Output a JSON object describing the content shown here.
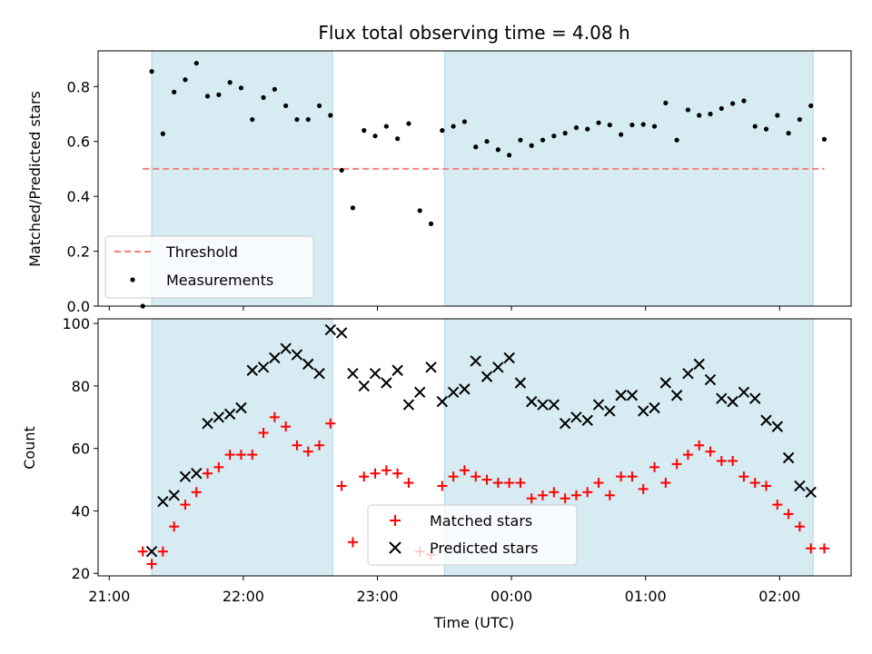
{
  "chart_data": [
    {
      "type": "scatter",
      "title": "Flux total observing time = 4.08 h",
      "xlabel": "",
      "ylabel": "Matched/Predicted stars",
      "ylim": [
        0,
        0.93
      ],
      "yticks": [
        "0.0",
        "0.2",
        "0.4",
        "0.6",
        "0.8"
      ],
      "ytick_values": [
        0,
        0.2,
        0.4,
        0.6,
        0.8
      ],
      "x_range_min": [
        -5,
        332
      ],
      "x_tick_minutes": [
        0,
        60,
        120,
        180,
        240,
        300
      ],
      "shaded_intervals_min": [
        [
          19,
          100
        ],
        [
          150,
          315
        ]
      ],
      "threshold": {
        "name": "Threshold",
        "value": 0.5,
        "x_span_min": [
          15,
          320
        ],
        "color": "#f08080"
      },
      "legend_position": "lower-left",
      "series": [
        {
          "name": "Measurements",
          "color": "#000000",
          "x": [
            15,
            19,
            24,
            29,
            34,
            39,
            44,
            49,
            54,
            59,
            64,
            69,
            74,
            79,
            84,
            89,
            94,
            99,
            104,
            109,
            114,
            119,
            124,
            129,
            134,
            139,
            144,
            149,
            154,
            159,
            164,
            169,
            174,
            179,
            184,
            189,
            194,
            199,
            204,
            209,
            214,
            219,
            224,
            229,
            234,
            239,
            244,
            249,
            254,
            259,
            264,
            269,
            274,
            279,
            284,
            289,
            294,
            299,
            304,
            309,
            314,
            320
          ],
          "y": [
            0.0,
            0.855,
            0.628,
            0.78,
            0.825,
            0.885,
            0.765,
            0.77,
            0.815,
            0.795,
            0.68,
            0.76,
            0.79,
            0.73,
            0.68,
            0.68,
            0.73,
            0.695,
            0.495,
            0.358,
            0.64,
            0.62,
            0.655,
            0.61,
            0.665,
            0.348,
            0.3,
            0.64,
            0.655,
            0.672,
            0.58,
            0.6,
            0.57,
            0.55,
            0.605,
            0.585,
            0.605,
            0.62,
            0.63,
            0.65,
            0.645,
            0.668,
            0.66,
            0.625,
            0.66,
            0.662,
            0.655,
            0.74,
            0.605,
            0.715,
            0.695,
            0.7,
            0.72,
            0.738,
            0.748,
            0.655,
            0.645,
            0.695,
            0.63,
            0.68,
            0.73,
            0.608
          ]
        }
      ]
    },
    {
      "type": "scatter",
      "title": "",
      "xlabel": "Time (UTC)",
      "ylabel": "Count",
      "ylim": [
        19.2,
        101.5
      ],
      "yticks": [
        "20",
        "40",
        "60",
        "80",
        "100"
      ],
      "ytick_values": [
        20,
        40,
        60,
        80,
        100
      ],
      "x_range_min": [
        -5,
        332
      ],
      "xticks": [
        "21:00",
        "22:00",
        "23:00",
        "00:00",
        "01:00",
        "02:00"
      ],
      "x_tick_minutes": [
        0,
        60,
        120,
        180,
        240,
        300
      ],
      "shaded_intervals_min": [
        [
          19,
          100
        ],
        [
          150,
          315
        ]
      ],
      "legend_position": "lower-center",
      "series": [
        {
          "name": "Matched stars",
          "marker": "plus",
          "color": "#ff0000",
          "x": [
            15,
            19,
            24,
            29,
            34,
            39,
            44,
            49,
            54,
            59,
            64,
            69,
            74,
            79,
            84,
            89,
            94,
            99,
            104,
            109,
            114,
            119,
            124,
            129,
            134,
            139,
            144,
            149,
            154,
            159,
            164,
            169,
            174,
            179,
            184,
            189,
            194,
            199,
            204,
            209,
            214,
            219,
            224,
            229,
            234,
            239,
            244,
            249,
            254,
            259,
            264,
            269,
            274,
            279,
            284,
            289,
            294,
            299,
            304,
            309,
            314,
            320
          ],
          "y": [
            27,
            23,
            27,
            35,
            42,
            46,
            52,
            54,
            58,
            58,
            58,
            65,
            70,
            67,
            61,
            59,
            61,
            68,
            48,
            30,
            51,
            52,
            53,
            52,
            49,
            27,
            26,
            48,
            51,
            53,
            51,
            50,
            49,
            49,
            49,
            44,
            45,
            46,
            44,
            45,
            46,
            49,
            45,
            51,
            51,
            47,
            54,
            49,
            55,
            58,
            61,
            59,
            56,
            56,
            51,
            49,
            48,
            42,
            39,
            35,
            28,
            28
          ]
        },
        {
          "name": "Predicted stars",
          "marker": "x",
          "color": "#000000",
          "x": [
            19,
            24,
            29,
            34,
            39,
            44,
            49,
            54,
            59,
            64,
            69,
            74,
            79,
            84,
            89,
            94,
            99,
            104,
            109,
            114,
            119,
            124,
            129,
            134,
            139,
            144,
            149,
            154,
            159,
            164,
            169,
            174,
            179,
            184,
            189,
            194,
            199,
            204,
            209,
            214,
            219,
            224,
            229,
            234,
            239,
            244,
            249,
            254,
            259,
            264,
            269,
            274,
            279,
            284,
            289,
            294,
            299,
            304,
            309,
            314
          ],
          "y": [
            27,
            43,
            45,
            51,
            52,
            68,
            70,
            71,
            73,
            85,
            86,
            89,
            92,
            90,
            87,
            84,
            98,
            97,
            84,
            80,
            84,
            81,
            85,
            74,
            78,
            86,
            75,
            78,
            79,
            88,
            83,
            86,
            89,
            81,
            75,
            74,
            74,
            68,
            70,
            69,
            74,
            72,
            77,
            77,
            72,
            73,
            81,
            77,
            84,
            87,
            82,
            76,
            75,
            78,
            76,
            69,
            67,
            57,
            48,
            46
          ]
        }
      ]
    }
  ]
}
